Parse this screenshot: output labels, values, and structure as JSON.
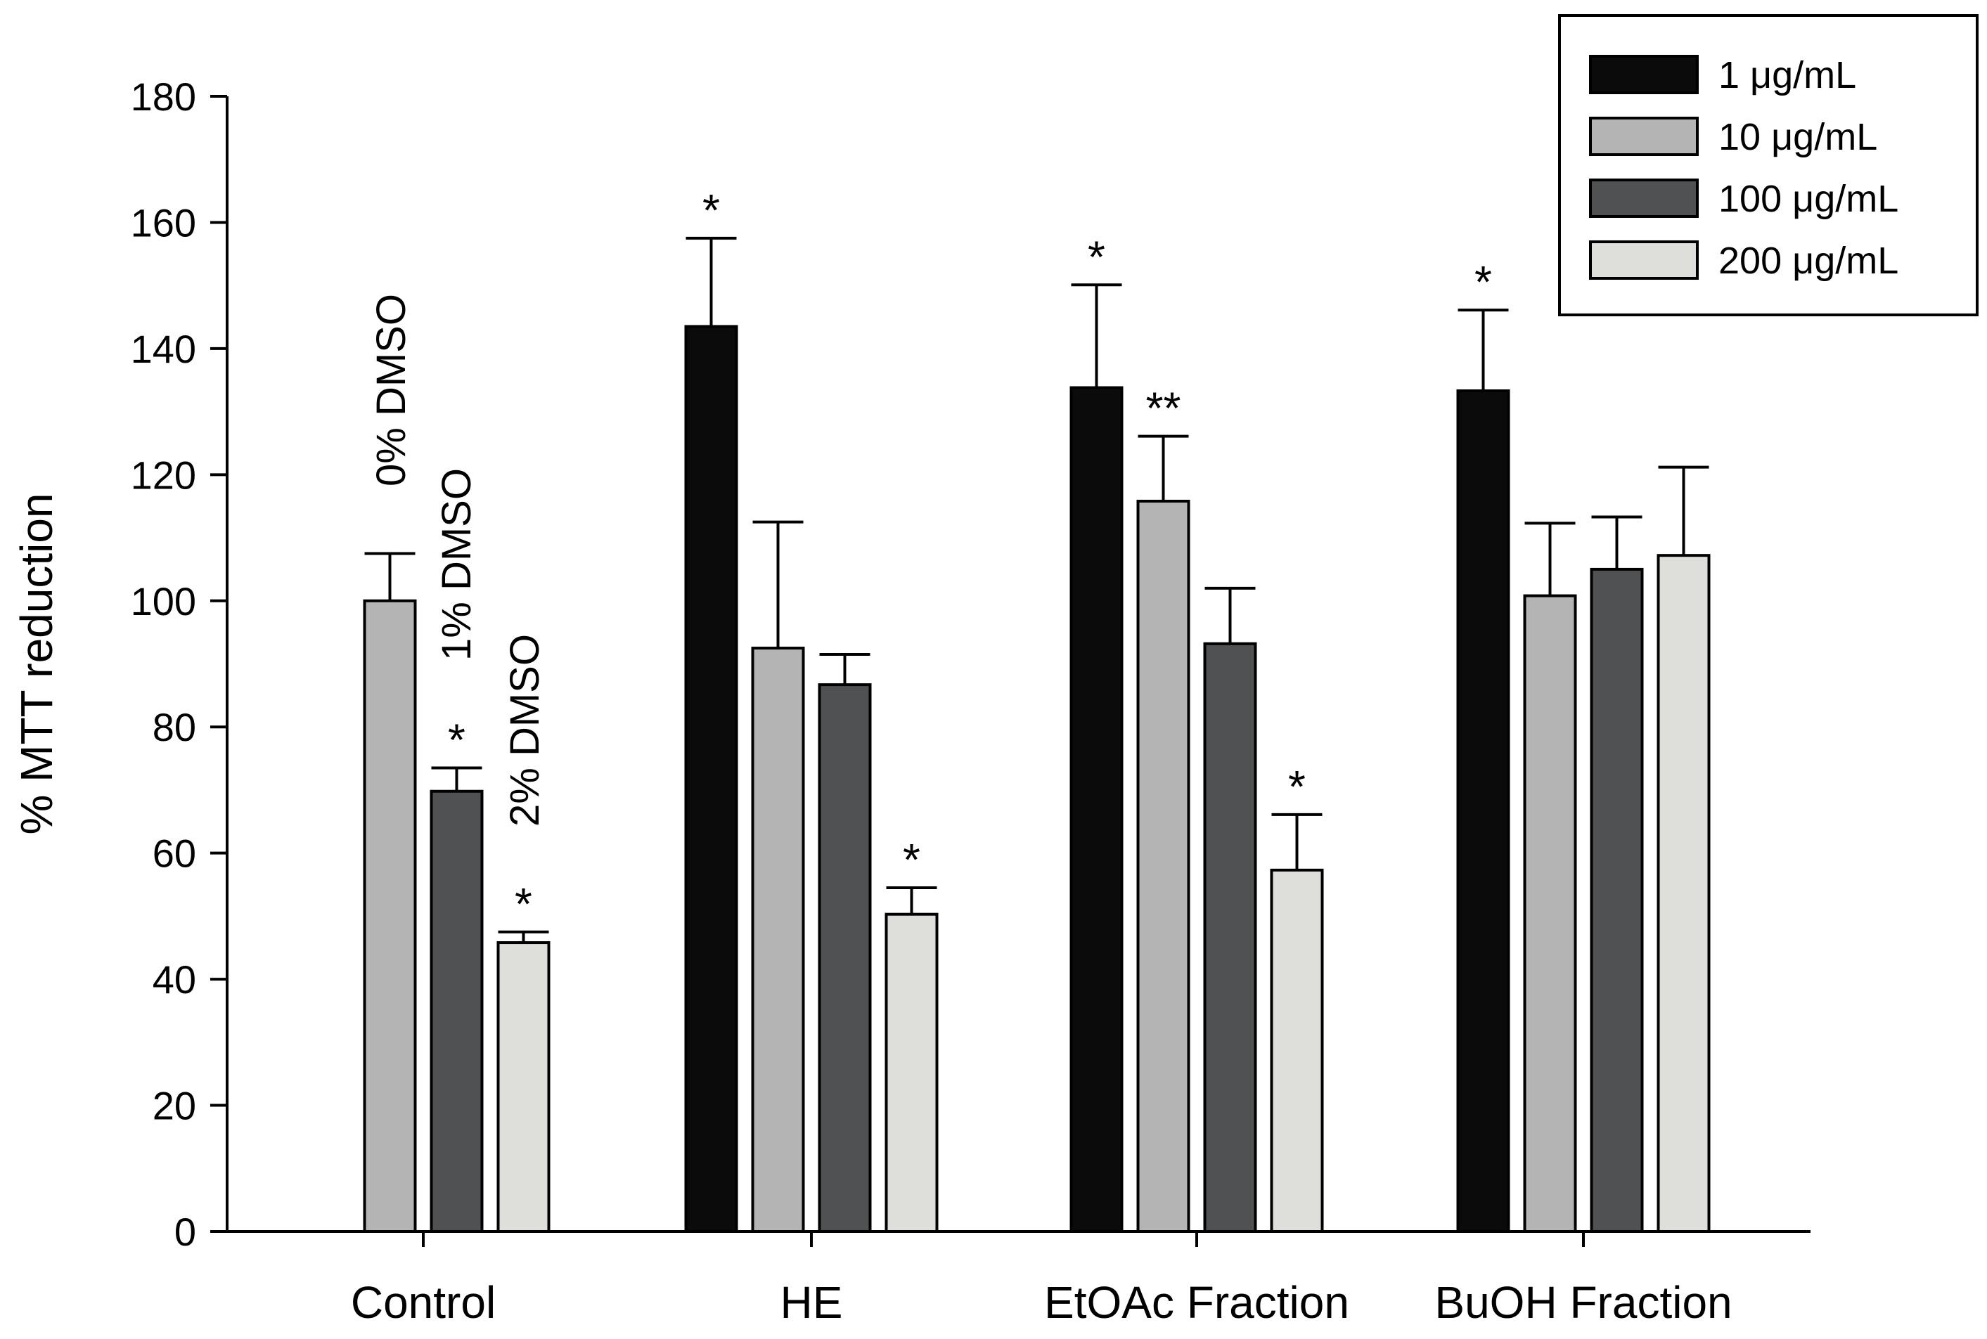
{
  "chart_data": {
    "type": "bar",
    "title": "",
    "xlabel": "",
    "ylabel": "% MTT reduction",
    "ylim": [
      0,
      180
    ],
    "yticks": [
      0,
      20,
      40,
      60,
      80,
      100,
      120,
      140,
      160,
      180
    ],
    "grid": false,
    "legend_position": "top-right",
    "categories": [
      "Control",
      "HE",
      "EtOAc Fraction",
      "BuOH Fraction"
    ],
    "series": [
      {
        "name": "1 μg/mL",
        "color": "#0b0b0b",
        "values": [
          null,
          143.5,
          133.8,
          133.3
        ],
        "errors": [
          null,
          14.0,
          16.3,
          12.8
        ],
        "stars": [
          "",
          "*",
          "*",
          "*"
        ]
      },
      {
        "name": "10 μg/mL",
        "color": "#b4b4b4",
        "values": [
          100,
          92.5,
          115.8,
          100.8
        ],
        "errors": [
          7.5,
          20.0,
          10.3,
          11.5
        ],
        "stars": [
          "",
          "",
          "**",
          ""
        ]
      },
      {
        "name": "100 μg/mL",
        "color": "#505152",
        "values": [
          69.8,
          86.7,
          93.2,
          105.0
        ],
        "errors": [
          3.7,
          4.8,
          8.8,
          8.3
        ],
        "stars": [
          "*",
          "",
          "",
          ""
        ]
      },
      {
        "name": "200 μg/mL",
        "color": "#dededb",
        "values": [
          45.8,
          50.3,
          57.3,
          107.2
        ],
        "errors": [
          1.7,
          4.2,
          8.8,
          14.0
        ],
        "stars": [
          "*",
          "*",
          "*",
          ""
        ]
      }
    ],
    "annotations": [
      "0% DMSO",
      "1% DMSO",
      "2% DMSO"
    ]
  }
}
